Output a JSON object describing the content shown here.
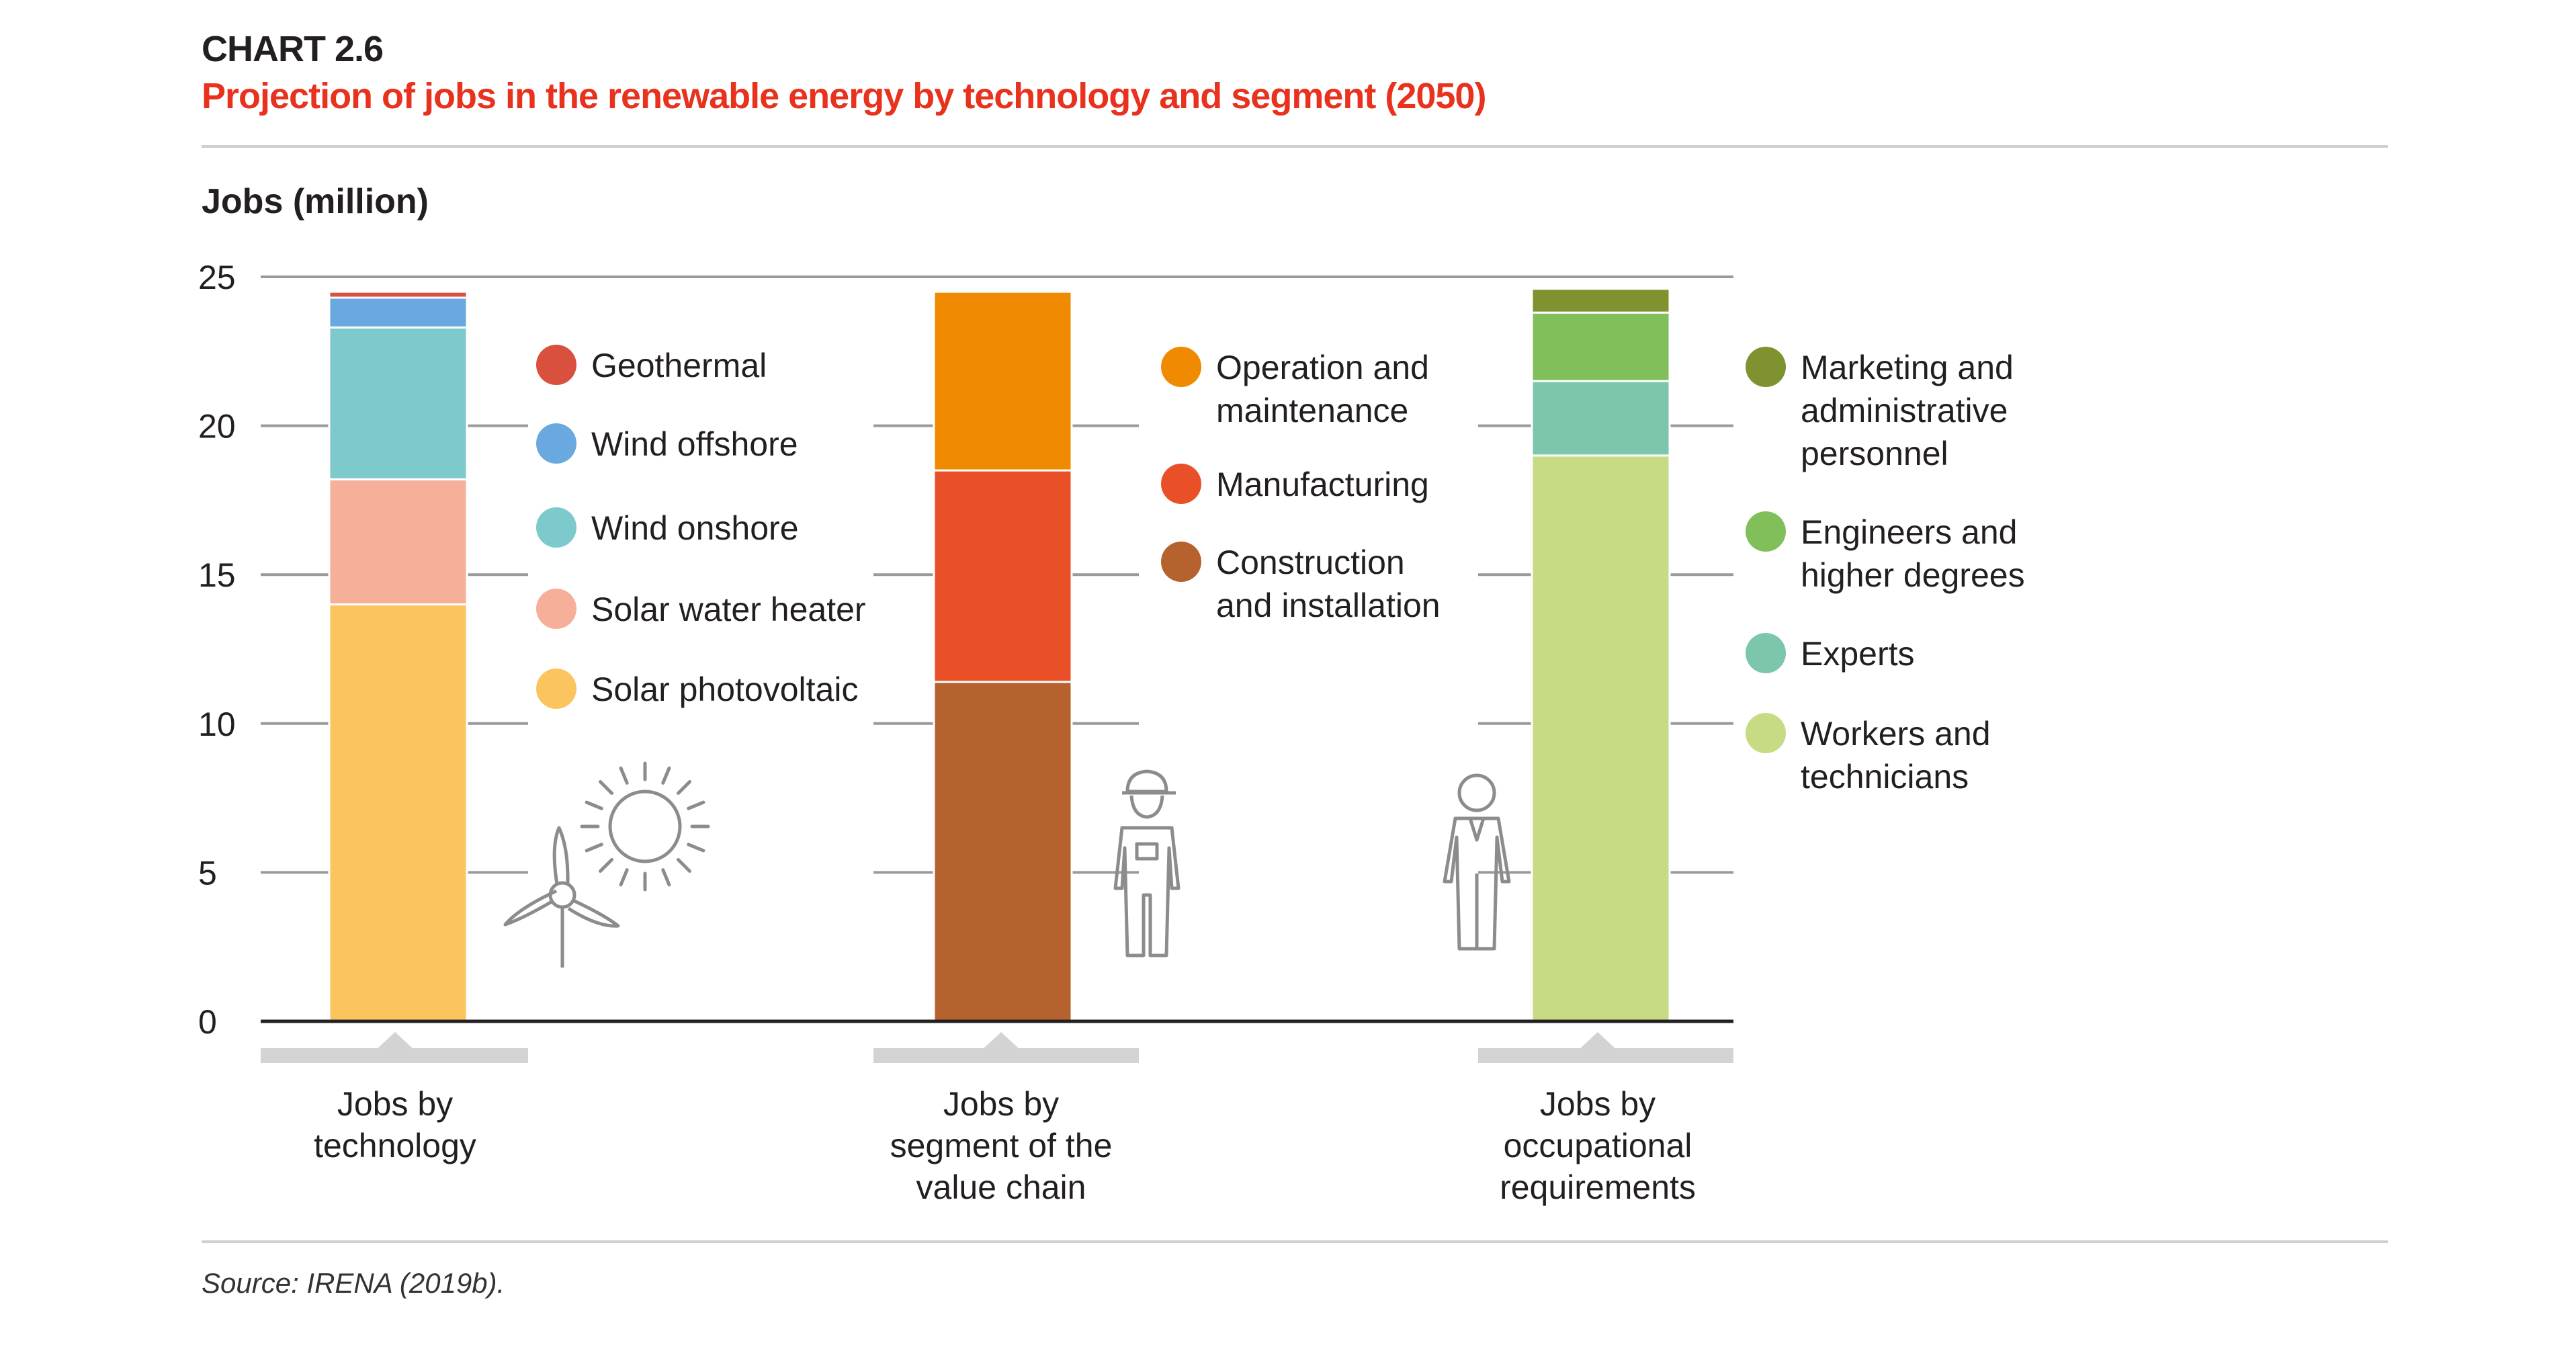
{
  "header": {
    "chart_label": "CHART 2.6",
    "title": "Projection of jobs in the renewable energy by technology and segment (2050)"
  },
  "source": "Source: IRENA (2019b).",
  "colors": {
    "geothermal": "#d9503f",
    "wind_offshore": "#6aa9df",
    "wind_onshore": "#7ccacc",
    "solar_water_heater": "#f6b09a",
    "solar_photovoltaic": "#fcc45f",
    "operation_maintenance": "#f08a00",
    "manufacturing": "#ea5028",
    "construction_installation": "#b5622f",
    "marketing_admin": "#7e9330",
    "engineers": "#80bf5a",
    "experts": "#7cc6ac",
    "workers": "#c7da84",
    "icon_stroke": "#8c8c8c"
  },
  "icons": [
    "wind-turbine-icon",
    "sun-icon",
    "hardhat-worker-icon",
    "office-worker-icon"
  ],
  "chart_data": {
    "type": "bar",
    "stacked": true,
    "ylabel": "Jobs (million)",
    "ylim": [
      0,
      25
    ],
    "yticks": [
      0,
      5,
      10,
      15,
      20,
      25
    ],
    "grid": true,
    "categories": [
      [
        "Jobs by",
        "technology"
      ],
      [
        "Jobs by",
        "segment of the",
        "value chain"
      ],
      [
        "Jobs by",
        "occupational",
        "requirements"
      ]
    ],
    "groups": [
      {
        "segments": [
          {
            "name": "Solar photovoltaic",
            "value": 14.0,
            "color_key": "solar_photovoltaic"
          },
          {
            "name": "Solar water heater",
            "value": 4.2,
            "color_key": "solar_water_heater"
          },
          {
            "name": "Wind onshore",
            "value": 5.1,
            "color_key": "wind_onshore"
          },
          {
            "name": "Wind offshore",
            "value": 1.0,
            "color_key": "wind_offshore"
          },
          {
            "name": "Geothermal",
            "value": 0.2,
            "color_key": "geothermal"
          }
        ],
        "legend": [
          {
            "label": [
              "Geothermal"
            ],
            "color_key": "geothermal"
          },
          {
            "label": [
              "Wind offshore"
            ],
            "color_key": "wind_offshore"
          },
          {
            "label": [
              "Wind onshore"
            ],
            "color_key": "wind_onshore"
          },
          {
            "label": [
              "Solar water heater"
            ],
            "color_key": "solar_water_heater"
          },
          {
            "label": [
              "Solar photovoltaic"
            ],
            "color_key": "solar_photovoltaic"
          }
        ]
      },
      {
        "segments": [
          {
            "name": "Construction and installation",
            "value": 11.4,
            "color_key": "construction_installation"
          },
          {
            "name": "Manufacturing",
            "value": 7.1,
            "color_key": "manufacturing"
          },
          {
            "name": "Operation and maintenance",
            "value": 6.0,
            "color_key": "operation_maintenance"
          }
        ],
        "legend": [
          {
            "label": [
              "Operation and",
              "maintenance"
            ],
            "color_key": "operation_maintenance"
          },
          {
            "label": [
              "Manufacturing"
            ],
            "color_key": "manufacturing"
          },
          {
            "label": [
              "Construction",
              "and installation"
            ],
            "color_key": "construction_installation"
          }
        ]
      },
      {
        "segments": [
          {
            "name": "Workers and technicians",
            "value": 19.0,
            "color_key": "workers"
          },
          {
            "name": "Experts",
            "value": 2.5,
            "color_key": "experts"
          },
          {
            "name": "Engineers and higher degrees",
            "value": 2.3,
            "color_key": "engineers"
          },
          {
            "name": "Marketing and administrative personnel",
            "value": 0.8,
            "color_key": "marketing_admin"
          }
        ],
        "legend": [
          {
            "label": [
              "Marketing and",
              "administrative",
              "personnel"
            ],
            "color_key": "marketing_admin"
          },
          {
            "label": [
              "Engineers and",
              "higher degrees"
            ],
            "color_key": "engineers"
          },
          {
            "label": [
              "Experts"
            ],
            "color_key": "experts"
          },
          {
            "label": [
              "Workers and",
              "technicians"
            ],
            "color_key": "workers"
          }
        ]
      }
    ]
  }
}
